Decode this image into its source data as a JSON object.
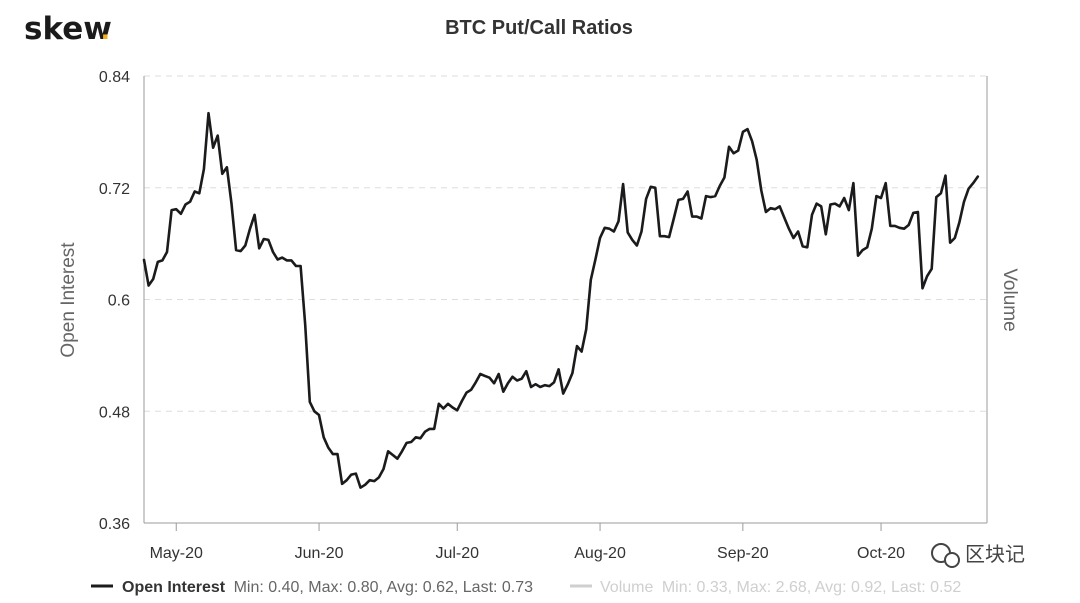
{
  "brand": {
    "name": "skew",
    "dot": "."
  },
  "chart_data": {
    "type": "line",
    "title": "BTC Put/Call Ratios",
    "ylabel": "Open Interest",
    "y2label": "Volume",
    "ylim": [
      0.36,
      0.84
    ],
    "yticks": [
      "0.84",
      "0.72",
      "0.6",
      "0.48",
      "0.36"
    ],
    "xlim": [
      "2020-05-01",
      "2020-10-31"
    ],
    "xticks": [
      {
        "date": "2020-05-08",
        "label": "May-20"
      },
      {
        "date": "2020-06-08",
        "label": "Jun-20"
      },
      {
        "date": "2020-07-08",
        "label": "Jul-20"
      },
      {
        "date": "2020-08-08",
        "label": "Aug-20"
      },
      {
        "date": "2020-09-08",
        "label": "Sep-20"
      },
      {
        "date": "2020-10-08",
        "label": "Oct-20"
      }
    ],
    "grid": true,
    "legend_position": "bottom",
    "series": [
      {
        "name": "Open Interest",
        "color": "#1b1b1d",
        "stats": "Min: 0.40, Max: 0.80, Avg: 0.62, Last: 0.73",
        "points": [
          [
            "2020-05-01",
            0.6425
          ],
          [
            "2020-05-02",
            0.615
          ],
          [
            "2020-05-03",
            0.622
          ],
          [
            "2020-05-04",
            0.6404
          ],
          [
            "2020-05-05",
            0.642
          ],
          [
            "2020-05-06",
            0.651
          ],
          [
            "2020-05-07",
            0.696
          ],
          [
            "2020-05-08",
            0.697
          ],
          [
            "2020-05-09",
            0.692
          ],
          [
            "2020-05-10",
            0.702
          ],
          [
            "2020-05-11",
            0.705
          ],
          [
            "2020-05-12",
            0.716
          ],
          [
            "2020-05-13",
            0.714
          ],
          [
            "2020-05-14",
            0.74
          ],
          [
            "2020-05-15",
            0.8
          ],
          [
            "2020-05-16",
            0.763
          ],
          [
            "2020-05-17",
            0.776
          ],
          [
            "2020-05-18",
            0.735
          ],
          [
            "2020-05-19",
            0.742
          ],
          [
            "2020-05-20",
            0.703
          ],
          [
            "2020-05-21",
            0.653
          ],
          [
            "2020-05-22",
            0.652
          ],
          [
            "2020-05-23",
            0.658
          ],
          [
            "2020-05-24",
            0.676
          ],
          [
            "2020-05-25",
            0.691
          ],
          [
            "2020-05-26",
            0.655
          ],
          [
            "2020-05-27",
            0.665
          ],
          [
            "2020-05-28",
            0.664
          ],
          [
            "2020-05-29",
            0.651
          ],
          [
            "2020-05-30",
            0.643
          ],
          [
            "2020-05-31",
            0.645
          ],
          [
            "2020-06-01",
            0.642
          ],
          [
            "2020-06-02",
            0.642
          ],
          [
            "2020-06-03",
            0.636
          ],
          [
            "2020-06-04",
            0.636
          ],
          [
            "2020-06-05",
            0.573
          ],
          [
            "2020-06-06",
            0.49
          ],
          [
            "2020-06-07",
            0.48
          ],
          [
            "2020-06-08",
            0.476
          ],
          [
            "2020-06-09",
            0.452
          ],
          [
            "2020-06-10",
            0.441
          ],
          [
            "2020-06-11",
            0.434
          ],
          [
            "2020-06-12",
            0.434
          ],
          [
            "2020-06-13",
            0.402
          ],
          [
            "2020-06-14",
            0.406
          ],
          [
            "2020-06-15",
            0.412
          ],
          [
            "2020-06-16",
            0.413
          ],
          [
            "2020-06-17",
            0.398
          ],
          [
            "2020-06-18",
            0.401
          ],
          [
            "2020-06-19",
            0.406
          ],
          [
            "2020-06-20",
            0.405
          ],
          [
            "2020-06-21",
            0.409
          ],
          [
            "2020-06-22",
            0.418
          ],
          [
            "2020-06-23",
            0.437
          ],
          [
            "2020-06-24",
            0.433
          ],
          [
            "2020-06-25",
            0.429
          ],
          [
            "2020-06-26",
            0.437
          ],
          [
            "2020-06-27",
            0.446
          ],
          [
            "2020-06-28",
            0.447
          ],
          [
            "2020-06-29",
            0.452
          ],
          [
            "2020-06-30",
            0.451
          ],
          [
            "2020-07-01",
            0.458
          ],
          [
            "2020-07-02",
            0.461
          ],
          [
            "2020-07-03",
            0.461
          ],
          [
            "2020-07-04",
            0.488
          ],
          [
            "2020-07-05",
            0.483
          ],
          [
            "2020-07-06",
            0.488
          ],
          [
            "2020-07-07",
            0.484
          ],
          [
            "2020-07-08",
            0.481
          ],
          [
            "2020-07-09",
            0.491
          ],
          [
            "2020-07-10",
            0.5
          ],
          [
            "2020-07-11",
            0.503
          ],
          [
            "2020-07-12",
            0.511
          ],
          [
            "2020-07-13",
            0.52
          ],
          [
            "2020-07-14",
            0.518
          ],
          [
            "2020-07-15",
            0.516
          ],
          [
            "2020-07-16",
            0.51
          ],
          [
            "2020-07-17",
            0.52
          ],
          [
            "2020-07-18",
            0.501
          ],
          [
            "2020-07-19",
            0.51
          ],
          [
            "2020-07-20",
            0.517
          ],
          [
            "2020-07-21",
            0.513
          ],
          [
            "2020-07-22",
            0.515
          ],
          [
            "2020-07-23",
            0.523
          ],
          [
            "2020-07-24",
            0.506
          ],
          [
            "2020-07-25",
            0.509
          ],
          [
            "2020-07-26",
            0.506
          ],
          [
            "2020-07-27",
            0.508
          ],
          [
            "2020-07-28",
            0.507
          ],
          [
            "2020-07-29",
            0.511
          ],
          [
            "2020-07-30",
            0.525
          ],
          [
            "2020-07-31",
            0.499
          ],
          [
            "2020-08-01",
            0.509
          ],
          [
            "2020-08-02",
            0.521
          ],
          [
            "2020-08-03",
            0.55
          ],
          [
            "2020-08-04",
            0.544
          ],
          [
            "2020-08-05",
            0.568
          ],
          [
            "2020-08-06",
            0.621
          ],
          [
            "2020-08-07",
            0.643
          ],
          [
            "2020-08-08",
            0.666
          ],
          [
            "2020-08-09",
            0.677
          ],
          [
            "2020-08-10",
            0.676
          ],
          [
            "2020-08-11",
            0.673
          ],
          [
            "2020-08-12",
            0.684
          ],
          [
            "2020-08-13",
            0.724
          ],
          [
            "2020-08-14",
            0.672
          ],
          [
            "2020-08-15",
            0.664
          ],
          [
            "2020-08-16",
            0.658
          ],
          [
            "2020-08-17",
            0.673
          ],
          [
            "2020-08-18",
            0.708
          ],
          [
            "2020-08-19",
            0.721
          ],
          [
            "2020-08-20",
            0.72
          ],
          [
            "2020-08-21",
            0.668
          ],
          [
            "2020-08-22",
            0.668
          ],
          [
            "2020-08-23",
            0.667
          ],
          [
            "2020-08-24",
            0.687
          ],
          [
            "2020-08-25",
            0.707
          ],
          [
            "2020-08-26",
            0.708
          ],
          [
            "2020-08-27",
            0.716
          ],
          [
            "2020-08-28",
            0.689
          ],
          [
            "2020-08-29",
            0.689
          ],
          [
            "2020-08-30",
            0.687
          ],
          [
            "2020-08-31",
            0.711
          ],
          [
            "2020-09-01",
            0.71
          ],
          [
            "2020-09-02",
            0.711
          ],
          [
            "2020-09-03",
            0.722
          ],
          [
            "2020-09-04",
            0.731
          ],
          [
            "2020-09-05",
            0.764
          ],
          [
            "2020-09-06",
            0.757
          ],
          [
            "2020-09-07",
            0.76
          ],
          [
            "2020-09-08",
            0.78
          ],
          [
            "2020-09-09",
            0.783
          ],
          [
            "2020-09-10",
            0.77
          ],
          [
            "2020-09-11",
            0.75
          ],
          [
            "2020-09-12",
            0.717
          ],
          [
            "2020-09-13",
            0.694
          ],
          [
            "2020-09-14",
            0.698
          ],
          [
            "2020-09-15",
            0.697
          ],
          [
            "2020-09-16",
            0.7
          ],
          [
            "2020-09-17",
            0.688
          ],
          [
            "2020-09-18",
            0.676
          ],
          [
            "2020-09-19",
            0.666
          ],
          [
            "2020-09-20",
            0.673
          ],
          [
            "2020-09-21",
            0.657
          ],
          [
            "2020-09-22",
            0.656
          ],
          [
            "2020-09-23",
            0.691
          ],
          [
            "2020-09-24",
            0.703
          ],
          [
            "2020-09-25",
            0.7
          ],
          [
            "2020-09-26",
            0.67
          ],
          [
            "2020-09-27",
            0.702
          ],
          [
            "2020-09-28",
            0.703
          ],
          [
            "2020-09-29",
            0.7
          ],
          [
            "2020-09-30",
            0.709
          ],
          [
            "2020-10-01",
            0.696
          ],
          [
            "2020-10-02",
            0.725
          ],
          [
            "2020-10-03",
            0.647
          ],
          [
            "2020-10-04",
            0.653
          ],
          [
            "2020-10-05",
            0.656
          ],
          [
            "2020-10-06",
            0.676
          ],
          [
            "2020-10-07",
            0.711
          ],
          [
            "2020-10-08",
            0.709
          ],
          [
            "2020-10-09",
            0.725
          ],
          [
            "2020-10-10",
            0.679
          ],
          [
            "2020-10-11",
            0.679
          ],
          [
            "2020-10-12",
            0.677
          ],
          [
            "2020-10-13",
            0.676
          ],
          [
            "2020-10-14",
            0.68
          ],
          [
            "2020-10-15",
            0.693
          ],
          [
            "2020-10-16",
            0.694
          ],
          [
            "2020-10-17",
            0.612
          ],
          [
            "2020-10-18",
            0.625
          ],
          [
            "2020-10-19",
            0.633
          ],
          [
            "2020-10-20",
            0.71
          ],
          [
            "2020-10-21",
            0.714
          ],
          [
            "2020-10-22",
            0.733
          ],
          [
            "2020-10-23",
            0.661
          ],
          [
            "2020-10-24",
            0.666
          ],
          [
            "2020-10-25",
            0.683
          ],
          [
            "2020-10-26",
            0.705
          ],
          [
            "2020-10-27",
            0.719
          ],
          [
            "2020-10-28",
            0.725
          ],
          [
            "2020-10-29",
            0.732
          ]
        ]
      },
      {
        "name": "Volume",
        "color": "#cfcfcf",
        "stats": "Min: 0.33, Max: 2.68, Avg: 0.92, Last: 0.52",
        "points": []
      }
    ]
  },
  "watermark": {
    "text": "区块记"
  }
}
